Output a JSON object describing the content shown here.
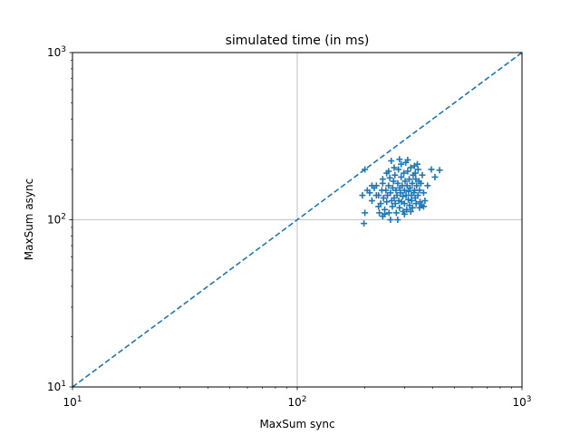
{
  "chart_data": {
    "type": "scatter",
    "title": "simulated time (in ms)",
    "xlabel": "MaxSum sync",
    "ylabel": "MaxSum async",
    "xscale": "log",
    "yscale": "log",
    "xlim": [
      10,
      1000
    ],
    "ylim": [
      10,
      1000
    ],
    "grid": "major",
    "marker": "+",
    "series_color": "#1f77b4",
    "grid_color": "#b0b0b0",
    "x_ticks": [
      {
        "base": "10",
        "exp": "1",
        "value": 10
      },
      {
        "base": "10",
        "exp": "2",
        "value": 100
      },
      {
        "base": "10",
        "exp": "3",
        "value": 1000
      }
    ],
    "y_ticks": [
      {
        "base": "10",
        "exp": "1",
        "value": 10
      },
      {
        "base": "10",
        "exp": "2",
        "value": 100
      },
      {
        "base": "10",
        "exp": "3",
        "value": 1000
      }
    ],
    "reference_line": {
      "style": "dashed",
      "points": [
        [
          10,
          10
        ],
        [
          1000,
          1000
        ]
      ]
    },
    "points": [
      [
        198,
        95
      ],
      [
        200,
        110
      ],
      [
        205,
        150
      ],
      [
        200,
        200
      ],
      [
        195,
        140
      ],
      [
        210,
        145
      ],
      [
        215,
        130
      ],
      [
        220,
        155
      ],
      [
        225,
        160
      ],
      [
        230,
        120
      ],
      [
        230,
        140
      ],
      [
        232,
        110
      ],
      [
        235,
        125
      ],
      [
        238,
        150
      ],
      [
        240,
        105
      ],
      [
        240,
        165
      ],
      [
        242,
        135
      ],
      [
        245,
        115
      ],
      [
        248,
        150
      ],
      [
        250,
        190
      ],
      [
        250,
        128
      ],
      [
        252,
        140
      ],
      [
        255,
        160
      ],
      [
        256,
        110
      ],
      [
        258,
        178
      ],
      [
        260,
        145
      ],
      [
        262,
        225
      ],
      [
        263,
        130
      ],
      [
        265,
        120
      ],
      [
        266,
        155
      ],
      [
        268,
        170
      ],
      [
        270,
        135
      ],
      [
        272,
        185
      ],
      [
        273,
        125
      ],
      [
        275,
        150
      ],
      [
        276,
        110
      ],
      [
        278,
        140
      ],
      [
        280,
        165
      ],
      [
        282,
        200
      ],
      [
        283,
        130
      ],
      [
        285,
        118
      ],
      [
        286,
        155
      ],
      [
        288,
        145
      ],
      [
        290,
        180
      ],
      [
        291,
        128
      ],
      [
        293,
        160
      ],
      [
        295,
        138
      ],
      [
        296,
        112
      ],
      [
        298,
        190
      ],
      [
        300,
        150
      ],
      [
        300,
        125
      ],
      [
        302,
        170
      ],
      [
        304,
        220
      ],
      [
        305,
        140
      ],
      [
        307,
        115
      ],
      [
        308,
        160
      ],
      [
        310,
        195
      ],
      [
        312,
        132
      ],
      [
        313,
        148
      ],
      [
        315,
        175
      ],
      [
        316,
        122
      ],
      [
        318,
        155
      ],
      [
        320,
        205
      ],
      [
        322,
        140
      ],
      [
        323,
        130
      ],
      [
        325,
        165
      ],
      [
        326,
        118
      ],
      [
        328,
        185
      ],
      [
        330,
        145
      ],
      [
        332,
        210
      ],
      [
        333,
        150
      ],
      [
        335,
        135
      ],
      [
        337,
        175
      ],
      [
        338,
        125
      ],
      [
        340,
        160
      ],
      [
        342,
        215
      ],
      [
        344,
        140
      ],
      [
        345,
        200
      ],
      [
        348,
        170
      ],
      [
        350,
        150
      ],
      [
        352,
        128
      ],
      [
        355,
        165
      ],
      [
        358,
        122
      ],
      [
        360,
        185
      ],
      [
        365,
        145
      ],
      [
        370,
        130
      ],
      [
        380,
        160
      ],
      [
        430,
        198
      ],
      [
        410,
        180
      ],
      [
        395,
        200
      ],
      [
        270,
        205
      ],
      [
        285,
        230
      ],
      [
        310,
        228
      ],
      [
        240,
        175
      ],
      [
        225,
        140
      ],
      [
        215,
        160
      ],
      [
        260,
        100
      ],
      [
        245,
        108
      ],
      [
        300,
        108
      ],
      [
        320,
        112
      ],
      [
        280,
        100
      ],
      [
        255,
        195
      ],
      [
        335,
        190
      ],
      [
        350,
        118
      ],
      [
        365,
        120
      ],
      [
        290,
        215
      ]
    ]
  }
}
